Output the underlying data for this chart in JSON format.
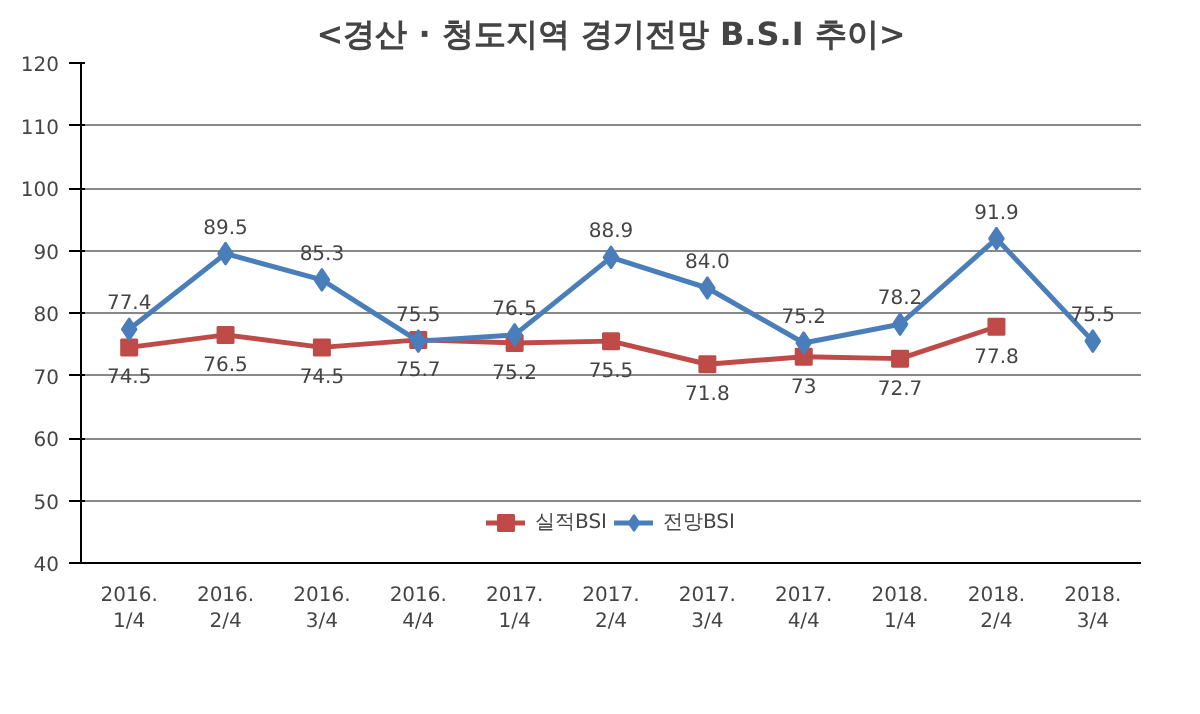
{
  "chart_data": {
    "type": "line",
    "title": "<경산 · 청도지역 경기전망 B.S.I 추이>",
    "categories": [
      "2016.\n1/4",
      "2016.\n2/4",
      "2016.\n3/4",
      "2016.\n4/4",
      "2017.\n1/4",
      "2017.\n2/4",
      "2017.\n3/4",
      "2017.\n4/4",
      "2018.\n1/4",
      "2018.\n2/4",
      "2018.\n3/4"
    ],
    "series": [
      {
        "name": "실적BSI",
        "color": "#be4b48",
        "marker": "square",
        "values": [
          74.5,
          76.5,
          74.5,
          75.7,
          75.2,
          75.5,
          71.8,
          73,
          72.7,
          77.8,
          null
        ],
        "value_labels": [
          "74.5",
          "76.5",
          "74.5",
          "75.7",
          "75.2",
          "75.5",
          "71.8",
          "73",
          "72.7",
          "77.8",
          null
        ]
      },
      {
        "name": "전망BSI",
        "color": "#4a7ebb",
        "marker": "diamond",
        "values": [
          77.4,
          89.5,
          85.3,
          75.5,
          76.5,
          88.9,
          84.0,
          75.2,
          78.2,
          91.9,
          75.5
        ],
        "value_labels": [
          "77.4",
          "89.5",
          "85.3",
          "75.5",
          "76.5",
          "88.9",
          "84.0",
          "75.2",
          "78.2",
          "91.9",
          "75.5"
        ]
      }
    ],
    "ylim": [
      40,
      120
    ],
    "yticks": [
      40,
      50,
      60,
      70,
      80,
      90,
      100,
      110,
      120
    ],
    "grid": "y",
    "legend": "bottom",
    "line_style": "solid"
  }
}
